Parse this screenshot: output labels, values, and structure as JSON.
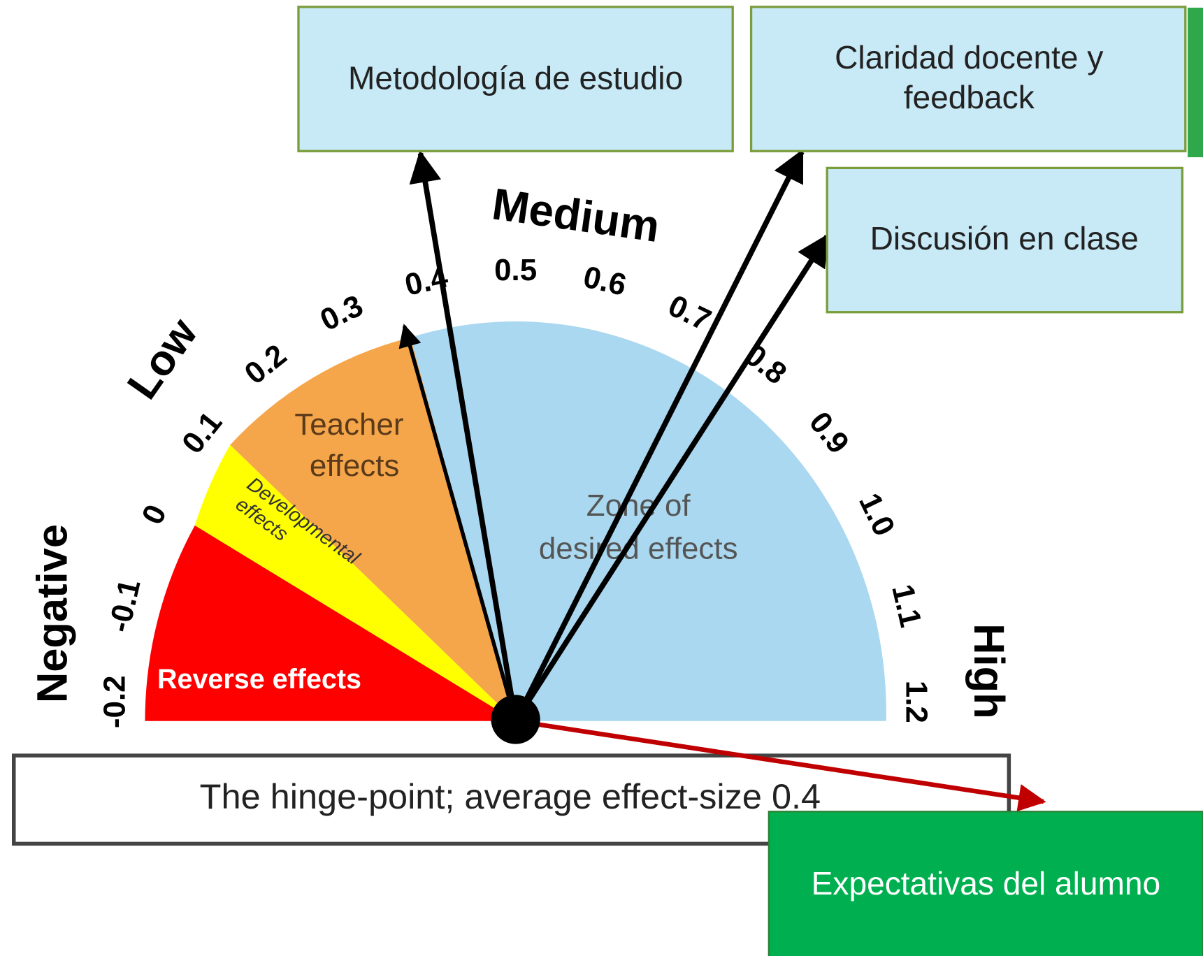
{
  "boxes": [
    {
      "lines": [
        "Metodología de estudio"
      ]
    },
    {
      "lines": [
        "Claridad docente y",
        "feedback"
      ]
    },
    {
      "lines": [
        "Discusión en clase"
      ]
    },
    {
      "lines": [
        "Expectativas del alumno"
      ]
    }
  ],
  "dial": {
    "categories": [
      "Negative",
      "Low",
      "Medium",
      "High"
    ],
    "scale": [
      "-0.2",
      "-0.1",
      "0",
      "0.1",
      "0.2",
      "0.3",
      "0.4",
      "0.5",
      "0.6",
      "0.7",
      "0.8",
      "0.9",
      "1.0",
      "1.1",
      "1.2"
    ],
    "zones": {
      "reverse": "Reverse effects",
      "developmental": [
        "Developmental",
        "effects"
      ],
      "teacher": [
        "Teacher",
        "effects"
      ],
      "desired": [
        "Zone of",
        "desired effects"
      ]
    },
    "hinge": "The hinge-point; average effect-size 0.4"
  }
}
